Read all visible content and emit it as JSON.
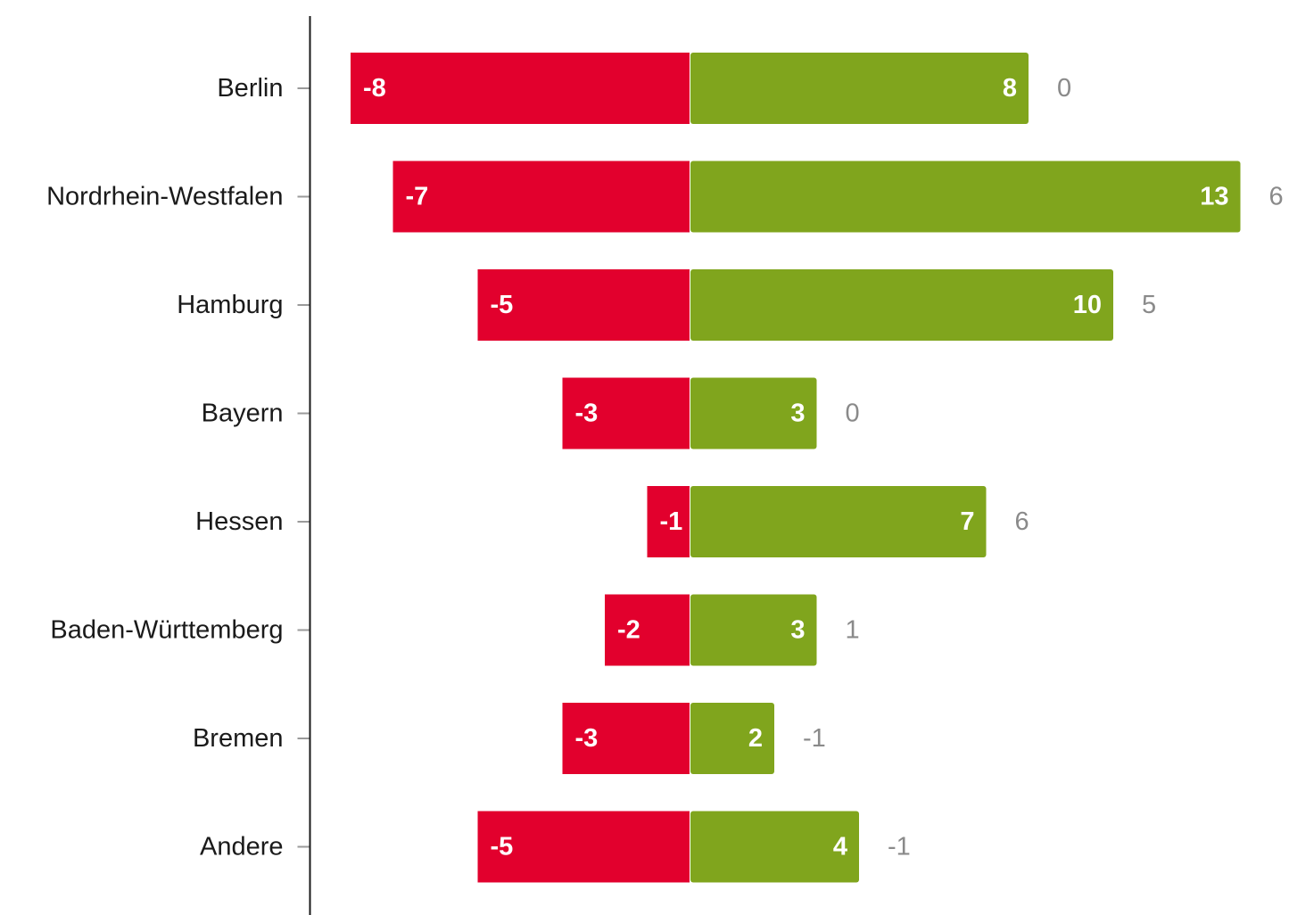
{
  "chart_data": {
    "type": "bar",
    "orientation": "horizontal",
    "layout": "diverging",
    "categories": [
      "Berlin",
      "Nordrhein-Westfalen",
      "Hamburg",
      "Bayern",
      "Hessen",
      "Baden-Württemberg",
      "Bremen",
      "Andere"
    ],
    "series": [
      {
        "values": [
          -8,
          -7,
          -5,
          -3,
          -1,
          -2,
          -3,
          -5
        ],
        "color": "#e2002d"
      },
      {
        "values": [
          8,
          13,
          10,
          3,
          7,
          3,
          2,
          4
        ],
        "color": "#80a51d"
      }
    ],
    "net": [
      0,
      6,
      5,
      0,
      6,
      1,
      -1,
      -1
    ],
    "net_color": "#8a8a8a",
    "xlim": [
      -8.2,
      14
    ]
  }
}
